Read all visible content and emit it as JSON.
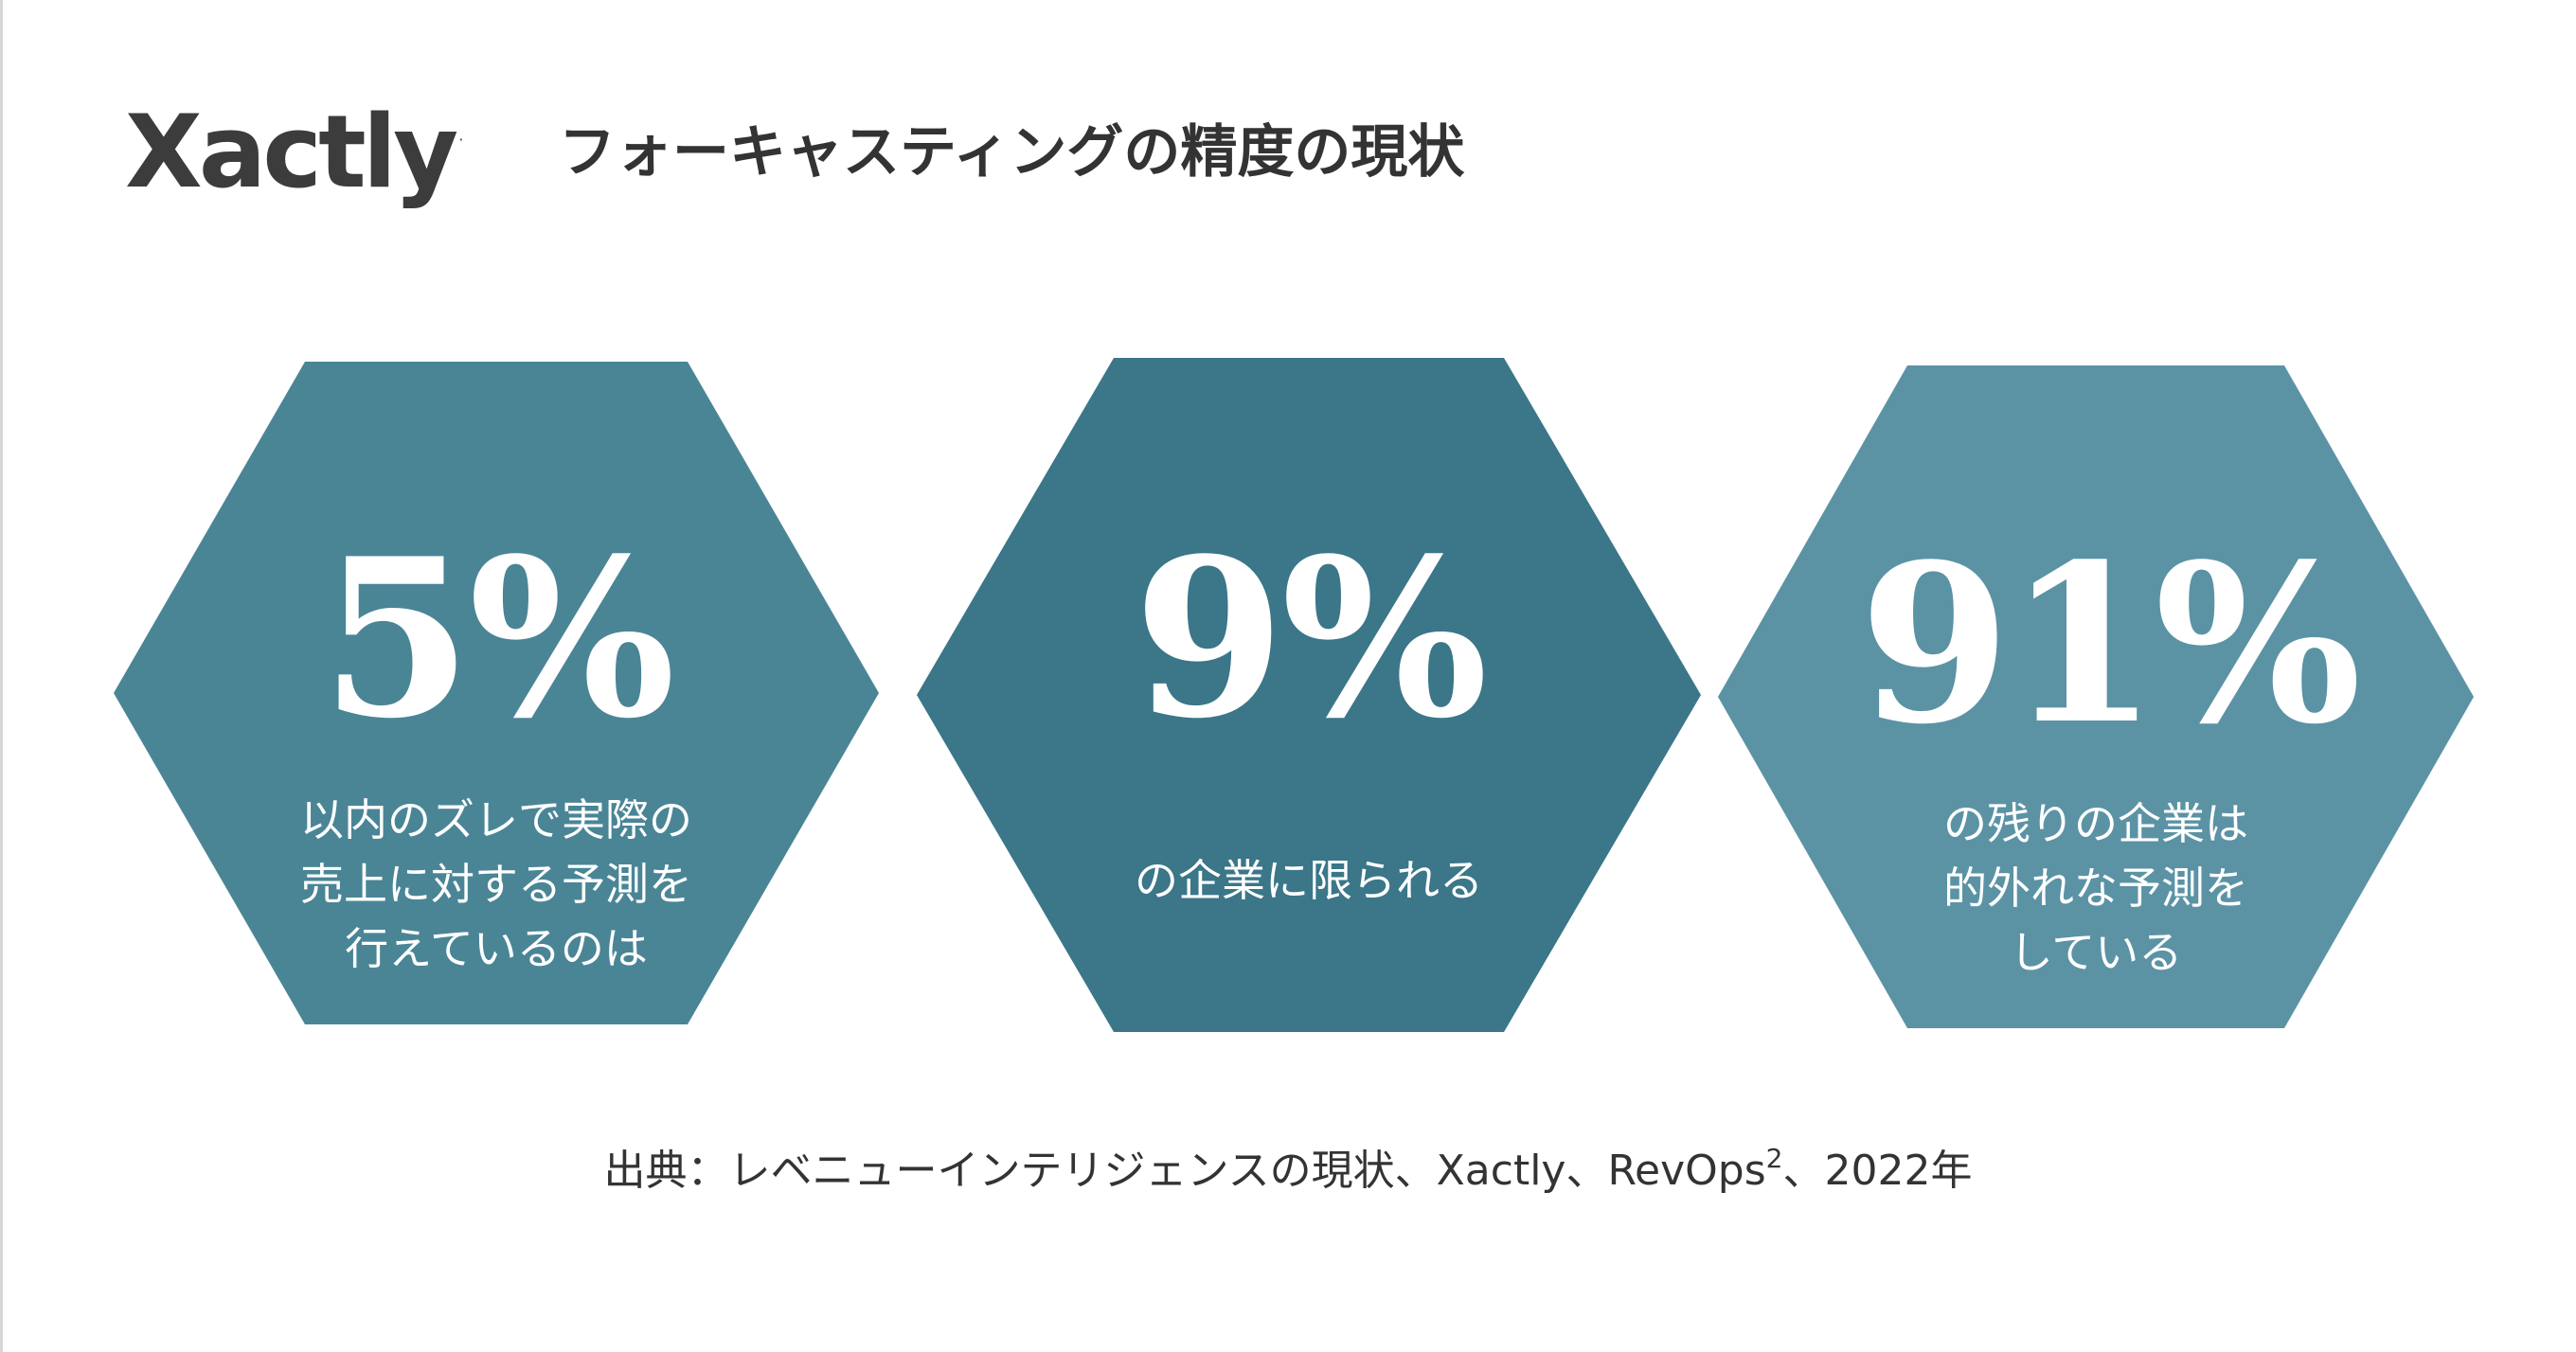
{
  "logo": {
    "text": "Xactly",
    "tm": "·"
  },
  "title": "フォーキャスティングの精度の現状",
  "hexagons": [
    {
      "percent": "5%",
      "value": 5,
      "caption_lines": [
        "以内のズレで実際の",
        "売上に対する予測を",
        "行えているのは"
      ],
      "color": "#4a8596"
    },
    {
      "percent": "9%",
      "value": 9,
      "caption_lines": [
        "の企業に限られる"
      ],
      "color": "#3b7689"
    },
    {
      "percent": "91%",
      "value": 91,
      "caption_lines": [
        "の残りの企業は",
        "的外れな予測を",
        "している"
      ],
      "color": "#5b93a5"
    }
  ],
  "source": {
    "text_before": "出典：レベニューインテリジェンスの現状、Xactly、RevOps",
    "superscript": "2",
    "text_after": "、2022年"
  }
}
